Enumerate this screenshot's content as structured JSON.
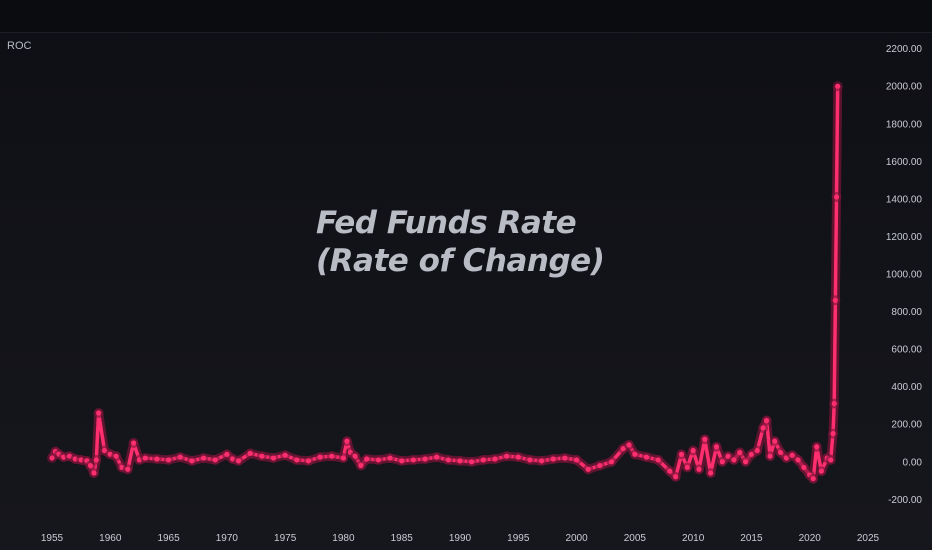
{
  "indicator": {
    "label": "ROC"
  },
  "headline": {
    "line1": "Fed Funds Rate",
    "line2": "(Rate of Change)"
  },
  "colors": {
    "series": "#ff2e6e",
    "glow": "#7a1438",
    "axis_text": "#c9ccd3",
    "background": "#121319"
  },
  "chart_data": {
    "type": "line",
    "title": "Fed Funds Rate (Rate of Change)",
    "xlabel": "",
    "ylabel": "",
    "xlim": [
      1954.6,
      2025.3
    ],
    "ylim": [
      -230,
      2230
    ],
    "x_ticks": [
      "1955",
      "1960",
      "1965",
      "1970",
      "1975",
      "1980",
      "1985",
      "1990",
      "1995",
      "2000",
      "2005",
      "2010",
      "2015",
      "2020",
      "2025"
    ],
    "y_ticks": [
      "2200.00",
      "2000.00",
      "1800.00",
      "1600.00",
      "1400.00",
      "1200.00",
      "1000.00",
      "800.00",
      "600.00",
      "400.00",
      "200.00",
      "0.00",
      "-200.00"
    ],
    "grid": false,
    "legend": "none",
    "series": [
      {
        "name": "ROC",
        "x": [
          1955.0,
          1955.3,
          1955.6,
          1956.0,
          1956.5,
          1957.0,
          1957.5,
          1958.0,
          1958.3,
          1958.6,
          1958.8,
          1959.0,
          1959.5,
          1960.0,
          1960.5,
          1961.0,
          1961.5,
          1962.0,
          1962.5,
          1963.0,
          1964.0,
          1965.0,
          1966.0,
          1967.0,
          1968.0,
          1969.0,
          1970.0,
          1970.5,
          1971.0,
          1972.0,
          1973.0,
          1974.0,
          1975.0,
          1976.0,
          1977.0,
          1978.0,
          1979.0,
          1980.0,
          1980.3,
          1980.6,
          1981.0,
          1981.5,
          1982.0,
          1983.0,
          1984.0,
          1985.0,
          1986.0,
          1987.0,
          1988.0,
          1989.0,
          1990.0,
          1991.0,
          1992.0,
          1993.0,
          1994.0,
          1995.0,
          1996.0,
          1997.0,
          1998.0,
          1999.0,
          2000.0,
          2001.0,
          2002.0,
          2003.0,
          2004.0,
          2004.5,
          2005.0,
          2006.0,
          2007.0,
          2008.0,
          2008.5,
          2009.0,
          2009.5,
          2010.0,
          2010.5,
          2011.0,
          2011.5,
          2012.0,
          2012.5,
          2013.0,
          2013.5,
          2014.0,
          2014.5,
          2015.0,
          2015.5,
          2016.0,
          2016.3,
          2016.6,
          2017.0,
          2017.5,
          2018.0,
          2018.5,
          2019.0,
          2019.5,
          2020.0,
          2020.3,
          2020.6,
          2021.0,
          2021.5,
          2021.8,
          2022.0,
          2022.1,
          2022.2,
          2022.3,
          2022.4
        ],
        "y": [
          20,
          55,
          40,
          25,
          30,
          15,
          10,
          5,
          -20,
          -60,
          10,
          260,
          60,
          40,
          30,
          -30,
          -40,
          100,
          10,
          20,
          15,
          10,
          25,
          5,
          20,
          10,
          40,
          15,
          5,
          45,
          30,
          20,
          35,
          10,
          5,
          25,
          30,
          20,
          110,
          50,
          30,
          -20,
          15,
          10,
          20,
          5,
          10,
          15,
          25,
          10,
          5,
          0,
          10,
          15,
          30,
          25,
          10,
          5,
          15,
          20,
          10,
          -40,
          -20,
          0,
          70,
          90,
          40,
          25,
          10,
          -50,
          -80,
          40,
          -30,
          60,
          -40,
          120,
          -60,
          80,
          0,
          30,
          10,
          50,
          0,
          40,
          60,
          180,
          220,
          30,
          110,
          50,
          20,
          35,
          10,
          -30,
          -70,
          -90,
          80,
          -50,
          20,
          10,
          150,
          310,
          860,
          1410,
          2000
        ]
      }
    ]
  }
}
